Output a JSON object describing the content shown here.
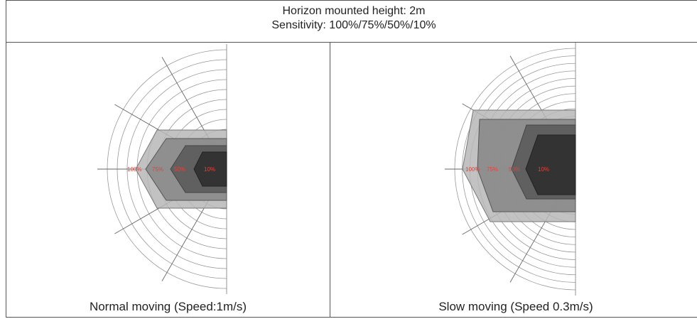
{
  "header": {
    "title": "Horizon mounted height: 2m",
    "subtitle": "Sensitivity: 100%/75%/50%/10%"
  },
  "panels": [
    {
      "caption": "Normal moving (Speed:1m/s)",
      "labels": [
        "100%",
        "75%",
        "50%",
        "10%"
      ],
      "label_color": "#e8403a"
    },
    {
      "caption": "Slow moving (Speed 0.3m/s)",
      "labels": [
        "100%",
        "75%",
        "50%",
        "10%"
      ],
      "label_color": "#e8403a"
    }
  ],
  "colors": {
    "ring": "#999999",
    "zone_100": "#b7b7b7",
    "zone_75": "#8a8a8a",
    "zone_50": "#5c5c5c",
    "zone_10": "#303030"
  }
}
